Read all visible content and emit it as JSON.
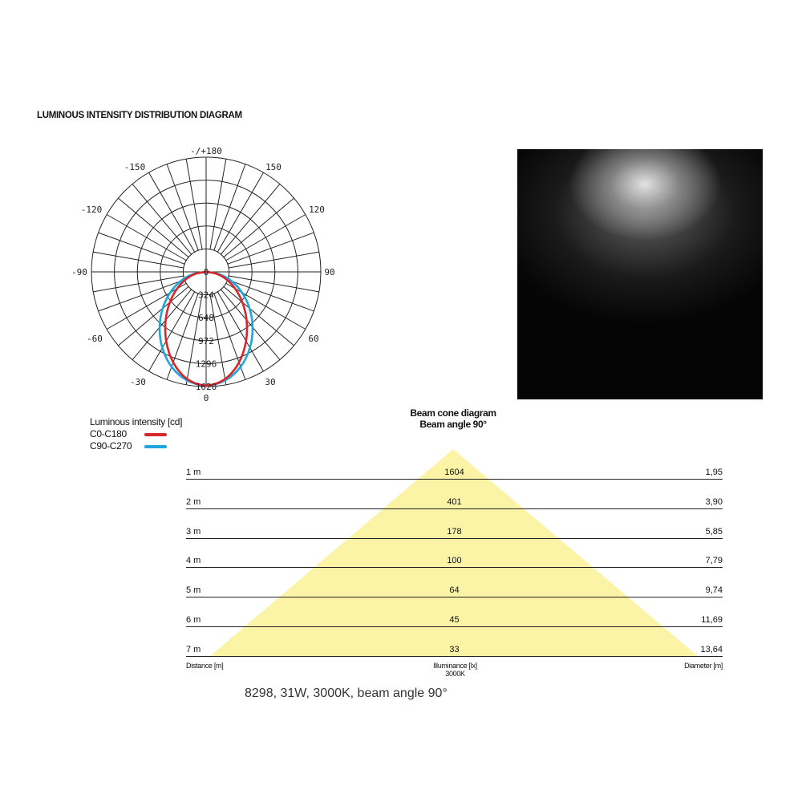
{
  "title": "LUMINOUS INTENSITY DISTRIBUTION DIAGRAM",
  "chart_data": [
    {
      "type": "polar",
      "unit": "cd",
      "angle_labels": {
        "top": "-/+180",
        "m150": "-150",
        "p150": "150",
        "m120": "-120",
        "p120": "120",
        "m90": "-90",
        "p90": "90",
        "m60": "-60",
        "p60": "60",
        "m30": "-30",
        "p30": "30",
        "bottom": "0"
      },
      "radial_ticks": [
        "0",
        "324",
        "648",
        "972",
        "1296",
        "1620"
      ],
      "rmax": 1620,
      "angles_deg": [
        0,
        10,
        20,
        30,
        40,
        50,
        60,
        70,
        80,
        90
      ],
      "series": [
        {
          "name": "C0-C180",
          "color": "#d9262b",
          "values": [
            1604,
            1537,
            1360,
            1128,
            889,
            668,
            473,
            302,
            147,
            0
          ]
        },
        {
          "name": "C90-C270",
          "color": "#1fa6dc",
          "values": [
            1604,
            1556,
            1426,
            1238,
            1022,
            800,
            586,
            383,
            189,
            0
          ]
        }
      ],
      "legend": {
        "title": "Luminous intensity [cd]",
        "placement": "bottom-left"
      }
    },
    {
      "type": "table",
      "title": "Beam cone diagram",
      "subtitle": "Beam angle 90°",
      "fill_color": "#fbf3a6",
      "columns": {
        "distance": "Distance [m]",
        "illuminance": "Illuminance [lx]",
        "illuminance_sub": "3000K",
        "diameter": "Diameter [m]"
      },
      "rows": [
        {
          "distance": "1 m",
          "illuminance": "1604",
          "diameter": "1,95"
        },
        {
          "distance": "2 m",
          "illuminance": "401",
          "diameter": "3,90"
        },
        {
          "distance": "3 m",
          "illuminance": "178",
          "diameter": "5,85"
        },
        {
          "distance": "4 m",
          "illuminance": "100",
          "diameter": "7,79"
        },
        {
          "distance": "5 m",
          "illuminance": "64",
          "diameter": "9,74"
        },
        {
          "distance": "6 m",
          "illuminance": "45",
          "diameter": "11,69"
        },
        {
          "distance": "7 m",
          "illuminance": "33",
          "diameter": "13,64"
        }
      ]
    }
  ],
  "caption": "8298, 31W, 3000K, beam angle 90°"
}
